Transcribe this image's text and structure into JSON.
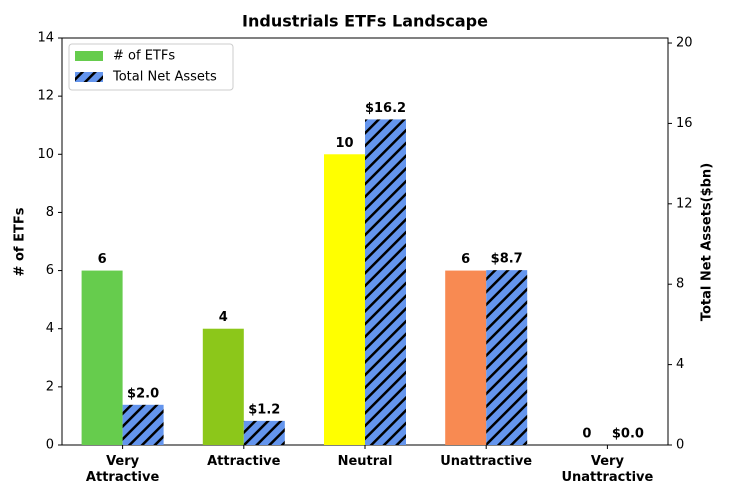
{
  "chart_data": {
    "type": "bar",
    "title": "Industrials ETFs Landscape",
    "categories": [
      "Very\nAttractive",
      "Attractive",
      "Neutral",
      "Unattractive",
      "Very\nUnattractive"
    ],
    "ylabel": "# of ETFs",
    "y2label": "Total Net Assets($bn)",
    "ylim": [
      0,
      14
    ],
    "yticks": [
      0,
      2,
      4,
      6,
      8,
      10,
      12,
      14
    ],
    "y2lim": [
      0,
      20.25
    ],
    "y2ticks": [
      0,
      4,
      8,
      12,
      16,
      20
    ],
    "legend": "upper left",
    "series": [
      {
        "name": "# of ETFs",
        "color": "#66cc4d",
        "colors": [
          "#66cc4d",
          "#8cc71a",
          "#ffff00",
          "#f88a52",
          "#d9d9d9"
        ],
        "values": [
          6,
          4,
          10,
          6,
          0
        ]
      },
      {
        "name": "Total Net Assets",
        "color": "#6495ed",
        "hatch": "//",
        "axis": "y2",
        "values": [
          2.0,
          1.2,
          16.2,
          8.7,
          0.0
        ],
        "value_labels": [
          "$2.0",
          "$1.2",
          "$16.2",
          "$8.7",
          "$0.0"
        ]
      }
    ]
  }
}
